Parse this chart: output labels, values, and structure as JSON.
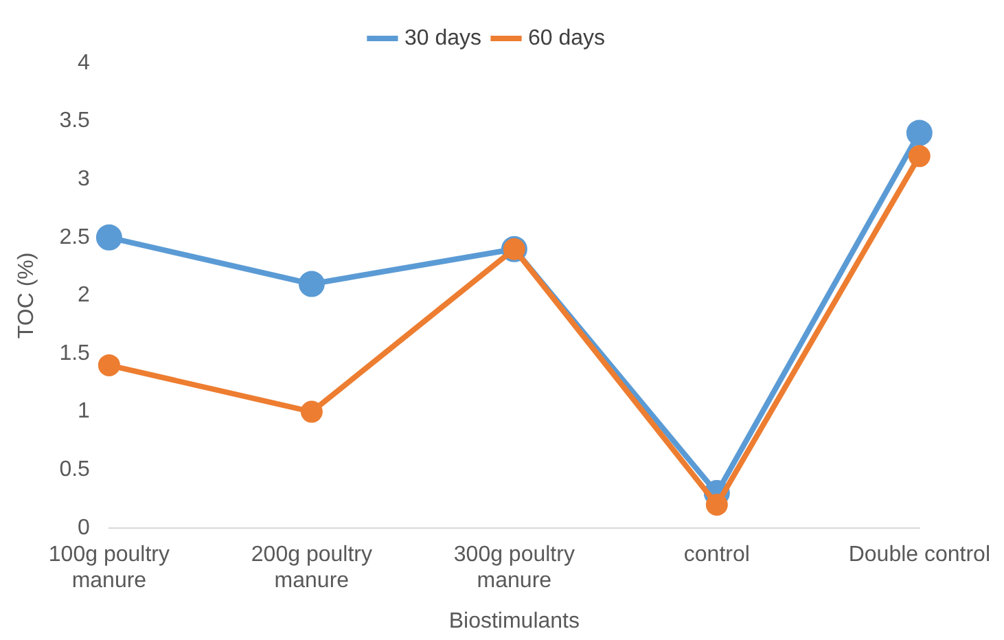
{
  "chart_data": {
    "type": "line",
    "xlabel": "Biostimulants",
    "ylabel": "TOC (%)",
    "categories": [
      "100g poultry manure",
      "200g poultry manure",
      "300g poultry manure",
      "control",
      "Double control"
    ],
    "series": [
      {
        "name": "30 days",
        "color": "#5b9bd5",
        "values": [
          2.5,
          2.1,
          2.4,
          0.3,
          3.4
        ]
      },
      {
        "name": "60 days",
        "color": "#ed7d31",
        "values": [
          1.4,
          1.0,
          2.4,
          0.2,
          3.2
        ]
      }
    ],
    "ylim": [
      0,
      4
    ],
    "yticks": [
      0,
      0.5,
      1,
      1.5,
      2,
      2.5,
      3,
      3.5,
      4
    ],
    "grid": false,
    "legend": "top",
    "marker": "circle",
    "line_style": "solid"
  }
}
